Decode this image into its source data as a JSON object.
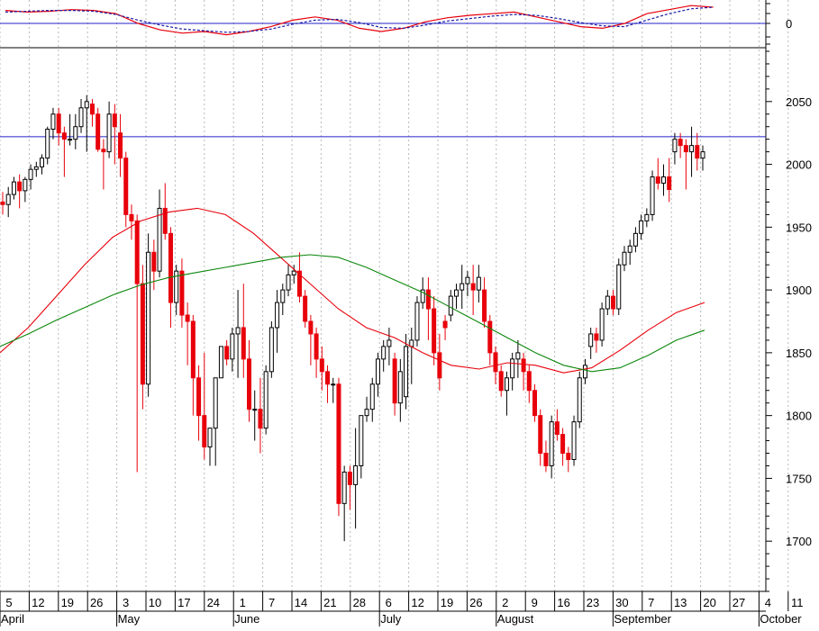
{
  "chart_data": {
    "type": "candlestick",
    "indicator_panel": {
      "zero_label": "0",
      "series": [
        {
          "style": "solid",
          "color": "#e8000b",
          "values": [
            0.8,
            0.7,
            0.75,
            0.85,
            0.8,
            0.6,
            0.0,
            -0.4,
            -0.6,
            -0.5,
            -0.7,
            -0.5,
            -0.2,
            0.2,
            0.4,
            0.2,
            -0.3,
            -0.5,
            -0.3,
            0.1,
            0.35,
            0.5,
            0.6,
            0.7,
            0.4,
            0.1,
            -0.2,
            -0.3,
            0.0,
            0.6,
            0.85,
            1.1,
            1.0
          ]
        },
        {
          "style": "dashed",
          "color": "#1a1aa6",
          "values": [
            0.7,
            0.75,
            0.8,
            0.8,
            0.75,
            0.55,
            0.2,
            -0.1,
            -0.35,
            -0.45,
            -0.55,
            -0.5,
            -0.35,
            -0.05,
            0.2,
            0.25,
            0.05,
            -0.25,
            -0.3,
            -0.1,
            0.15,
            0.3,
            0.45,
            0.55,
            0.5,
            0.3,
            0.05,
            -0.15,
            -0.2,
            0.2,
            0.6,
            0.9,
            1.0
          ]
        }
      ]
    },
    "y_ticks": [
      1700,
      1750,
      1800,
      1850,
      1900,
      1950,
      2000,
      2050
    ],
    "y_range": [
      1660,
      2090
    ],
    "horizontal_line": 2022,
    "x_axis": {
      "day_labels": [
        "5",
        "12",
        "19",
        "26",
        "3",
        "10",
        "17",
        "24",
        "1",
        "7",
        "14",
        "21",
        "28",
        "6",
        "12",
        "19",
        "26",
        "2",
        "9",
        "16",
        "23",
        "30",
        "7",
        "13",
        "20",
        "27",
        "4",
        "11"
      ],
      "month_labels": [
        "April",
        "May",
        "June",
        "July",
        "August",
        "September",
        "October"
      ],
      "month_start_weeks": [
        0,
        4,
        8,
        13,
        17,
        21,
        26
      ]
    },
    "candles": [
      [
        1970,
        1978,
        1960,
        1968
      ],
      [
        1968,
        1982,
        1958,
        1976
      ],
      [
        1976,
        1990,
        1972,
        1986
      ],
      [
        1986,
        1992,
        1965,
        1979
      ],
      [
        1979,
        1990,
        1970,
        1988
      ],
      [
        1988,
        2000,
        1980,
        1996
      ],
      [
        1996,
        2002,
        1990,
        1998
      ],
      [
        1998,
        2008,
        1992,
        2005
      ],
      [
        2005,
        2030,
        2000,
        2028
      ],
      [
        2028,
        2045,
        2020,
        2040
      ],
      [
        2040,
        2045,
        2015,
        2025
      ],
      [
        2025,
        2030,
        1990,
        2020
      ],
      [
        2020,
        2040,
        2015,
        2020
      ],
      [
        2020,
        2040,
        2012,
        2030
      ],
      [
        2030,
        2052,
        2025,
        2045
      ],
      [
        2045,
        2055,
        2010,
        2050
      ],
      [
        2048,
        2052,
        2030,
        2040
      ],
      [
        2040,
        2045,
        2010,
        2012
      ],
      [
        2012,
        2020,
        1980,
        2010
      ],
      [
        2010,
        2050,
        2005,
        2040
      ],
      [
        2040,
        2048,
        2000,
        2030
      ],
      [
        2025,
        2040,
        1990,
        2005
      ],
      [
        2005,
        2010,
        1950,
        1960
      ],
      [
        1960,
        1968,
        1940,
        1955
      ],
      [
        1955,
        1960,
        1755,
        1905
      ],
      [
        1905,
        1920,
        1805,
        1825
      ],
      [
        1825,
        1945,
        1815,
        1930
      ],
      [
        1930,
        1940,
        1900,
        1915
      ],
      [
        1915,
        1980,
        1910,
        1965
      ],
      [
        1965,
        1985,
        1940,
        1945
      ],
      [
        1945,
        1950,
        1870,
        1890
      ],
      [
        1890,
        1920,
        1880,
        1915
      ],
      [
        1915,
        1925,
        1870,
        1880
      ],
      [
        1880,
        1890,
        1840,
        1875
      ],
      [
        1875,
        1880,
        1800,
        1830
      ],
      [
        1830,
        1840,
        1780,
        1800
      ],
      [
        1800,
        1850,
        1765,
        1775
      ],
      [
        1775,
        1790,
        1760,
        1790
      ],
      [
        1790,
        1830,
        1760,
        1830
      ],
      [
        1830,
        1855,
        1830,
        1855
      ],
      [
        1855,
        1860,
        1840,
        1845
      ],
      [
        1845,
        1870,
        1835,
        1865
      ],
      [
        1865,
        1900,
        1830,
        1870
      ],
      [
        1870,
        1905,
        1830,
        1845
      ],
      [
        1845,
        1860,
        1795,
        1805
      ],
      [
        1805,
        1820,
        1780,
        1805
      ],
      [
        1805,
        1830,
        1770,
        1790
      ],
      [
        1790,
        1840,
        1785,
        1835
      ],
      [
        1835,
        1875,
        1830,
        1870
      ],
      [
        1870,
        1900,
        1850,
        1890
      ],
      [
        1890,
        1905,
        1880,
        1900
      ],
      [
        1900,
        1920,
        1895,
        1912
      ],
      [
        1912,
        1920,
        1905,
        1915
      ],
      [
        1915,
        1930,
        1890,
        1895
      ],
      [
        1895,
        1900,
        1870,
        1875
      ],
      [
        1875,
        1880,
        1840,
        1865
      ],
      [
        1865,
        1870,
        1830,
        1845
      ],
      [
        1845,
        1855,
        1820,
        1835
      ],
      [
        1835,
        1840,
        1810,
        1825
      ],
      [
        1825,
        1830,
        1810,
        1825
      ],
      [
        1825,
        1830,
        1720,
        1730
      ],
      [
        1730,
        1760,
        1700,
        1755
      ],
      [
        1755,
        1760,
        1725,
        1745
      ],
      [
        1745,
        1790,
        1710,
        1760
      ],
      [
        1760,
        1800,
        1750,
        1800
      ],
      [
        1800,
        1815,
        1795,
        1805
      ],
      [
        1805,
        1830,
        1795,
        1825
      ],
      [
        1825,
        1850,
        1815,
        1845
      ],
      [
        1845,
        1860,
        1835,
        1855
      ],
      [
        1855,
        1870,
        1840,
        1860
      ],
      [
        1845,
        1850,
        1800,
        1810
      ],
      [
        1810,
        1845,
        1795,
        1835
      ],
      [
        1815,
        1865,
        1805,
        1855
      ],
      [
        1855,
        1870,
        1825,
        1860
      ],
      [
        1860,
        1895,
        1855,
        1890
      ],
      [
        1890,
        1910,
        1885,
        1900
      ],
      [
        1900,
        1910,
        1860,
        1885
      ],
      [
        1885,
        1895,
        1840,
        1850
      ],
      [
        1850,
        1865,
        1820,
        1830
      ],
      [
        1875,
        1880,
        1860,
        1870
      ],
      [
        1880,
        1900,
        1875,
        1895
      ],
      [
        1895,
        1905,
        1885,
        1900
      ],
      [
        1900,
        1920,
        1885,
        1905
      ],
      [
        1905,
        1915,
        1895,
        1910
      ],
      [
        1905,
        1920,
        1880,
        1900
      ],
      [
        1900,
        1920,
        1890,
        1910
      ],
      [
        1900,
        1910,
        1870,
        1875
      ],
      [
        1875,
        1880,
        1840,
        1850
      ],
      [
        1850,
        1855,
        1825,
        1835
      ],
      [
        1835,
        1840,
        1815,
        1820
      ],
      [
        1820,
        1835,
        1800,
        1830
      ],
      [
        1830,
        1850,
        1820,
        1845
      ],
      [
        1845,
        1860,
        1830,
        1850
      ],
      [
        1845,
        1850,
        1820,
        1835
      ],
      [
        1835,
        1840,
        1810,
        1820
      ],
      [
        1820,
        1825,
        1795,
        1800
      ],
      [
        1800,
        1805,
        1760,
        1770
      ],
      [
        1770,
        1780,
        1755,
        1760
      ],
      [
        1760,
        1800,
        1750,
        1795
      ],
      [
        1795,
        1805,
        1780,
        1785
      ],
      [
        1785,
        1790,
        1760,
        1770
      ],
      [
        1770,
        1775,
        1755,
        1765
      ],
      [
        1765,
        1800,
        1760,
        1795
      ],
      [
        1795,
        1835,
        1790,
        1830
      ],
      [
        1830,
        1845,
        1825,
        1840
      ],
      [
        1855,
        1870,
        1845,
        1865
      ],
      [
        1865,
        1870,
        1850,
        1860
      ],
      [
        1860,
        1890,
        1855,
        1885
      ],
      [
        1885,
        1900,
        1880,
        1895
      ],
      [
        1895,
        1900,
        1880,
        1885
      ],
      [
        1885,
        1925,
        1880,
        1920
      ],
      [
        1920,
        1935,
        1915,
        1930
      ],
      [
        1930,
        1940,
        1920,
        1935
      ],
      [
        1935,
        1950,
        1930,
        1945
      ],
      [
        1945,
        1960,
        1940,
        1955
      ],
      [
        1955,
        1965,
        1950,
        1960
      ],
      [
        1960,
        1995,
        1955,
        1990
      ],
      [
        1990,
        2005,
        1980,
        1985
      ],
      [
        1985,
        2000,
        1975,
        1990
      ],
      [
        1990,
        2005,
        1970,
        1980
      ],
      [
        2010,
        2025,
        2000,
        2020
      ],
      [
        2020,
        2025,
        2005,
        2015
      ],
      [
        2015,
        2020,
        1980,
        2010
      ],
      [
        2010,
        2030,
        1990,
        2015
      ],
      [
        2015,
        2025,
        1995,
        2005
      ],
      [
        2005,
        2015,
        1995,
        2010
      ]
    ],
    "moving_averages": [
      {
        "color": "#e8000b",
        "start_index": 0,
        "values": [
          1850,
          1870,
          1895,
          1920,
          1942,
          1955,
          1962,
          1965,
          1960,
          1945,
          1925,
          1905,
          1885,
          1870,
          1862,
          1850,
          1840,
          1837,
          1842,
          1840,
          1834,
          1838,
          1852,
          1868,
          1882,
          1890
        ]
      },
      {
        "color": "#0c870c",
        "start_index": 0,
        "values": [
          1855,
          1865,
          1876,
          1886,
          1896,
          1904,
          1910,
          1914,
          1918,
          1922,
          1926,
          1928,
          1926,
          1918,
          1908,
          1898,
          1886,
          1874,
          1862,
          1850,
          1840,
          1835,
          1838,
          1848,
          1860,
          1868
        ]
      }
    ]
  }
}
